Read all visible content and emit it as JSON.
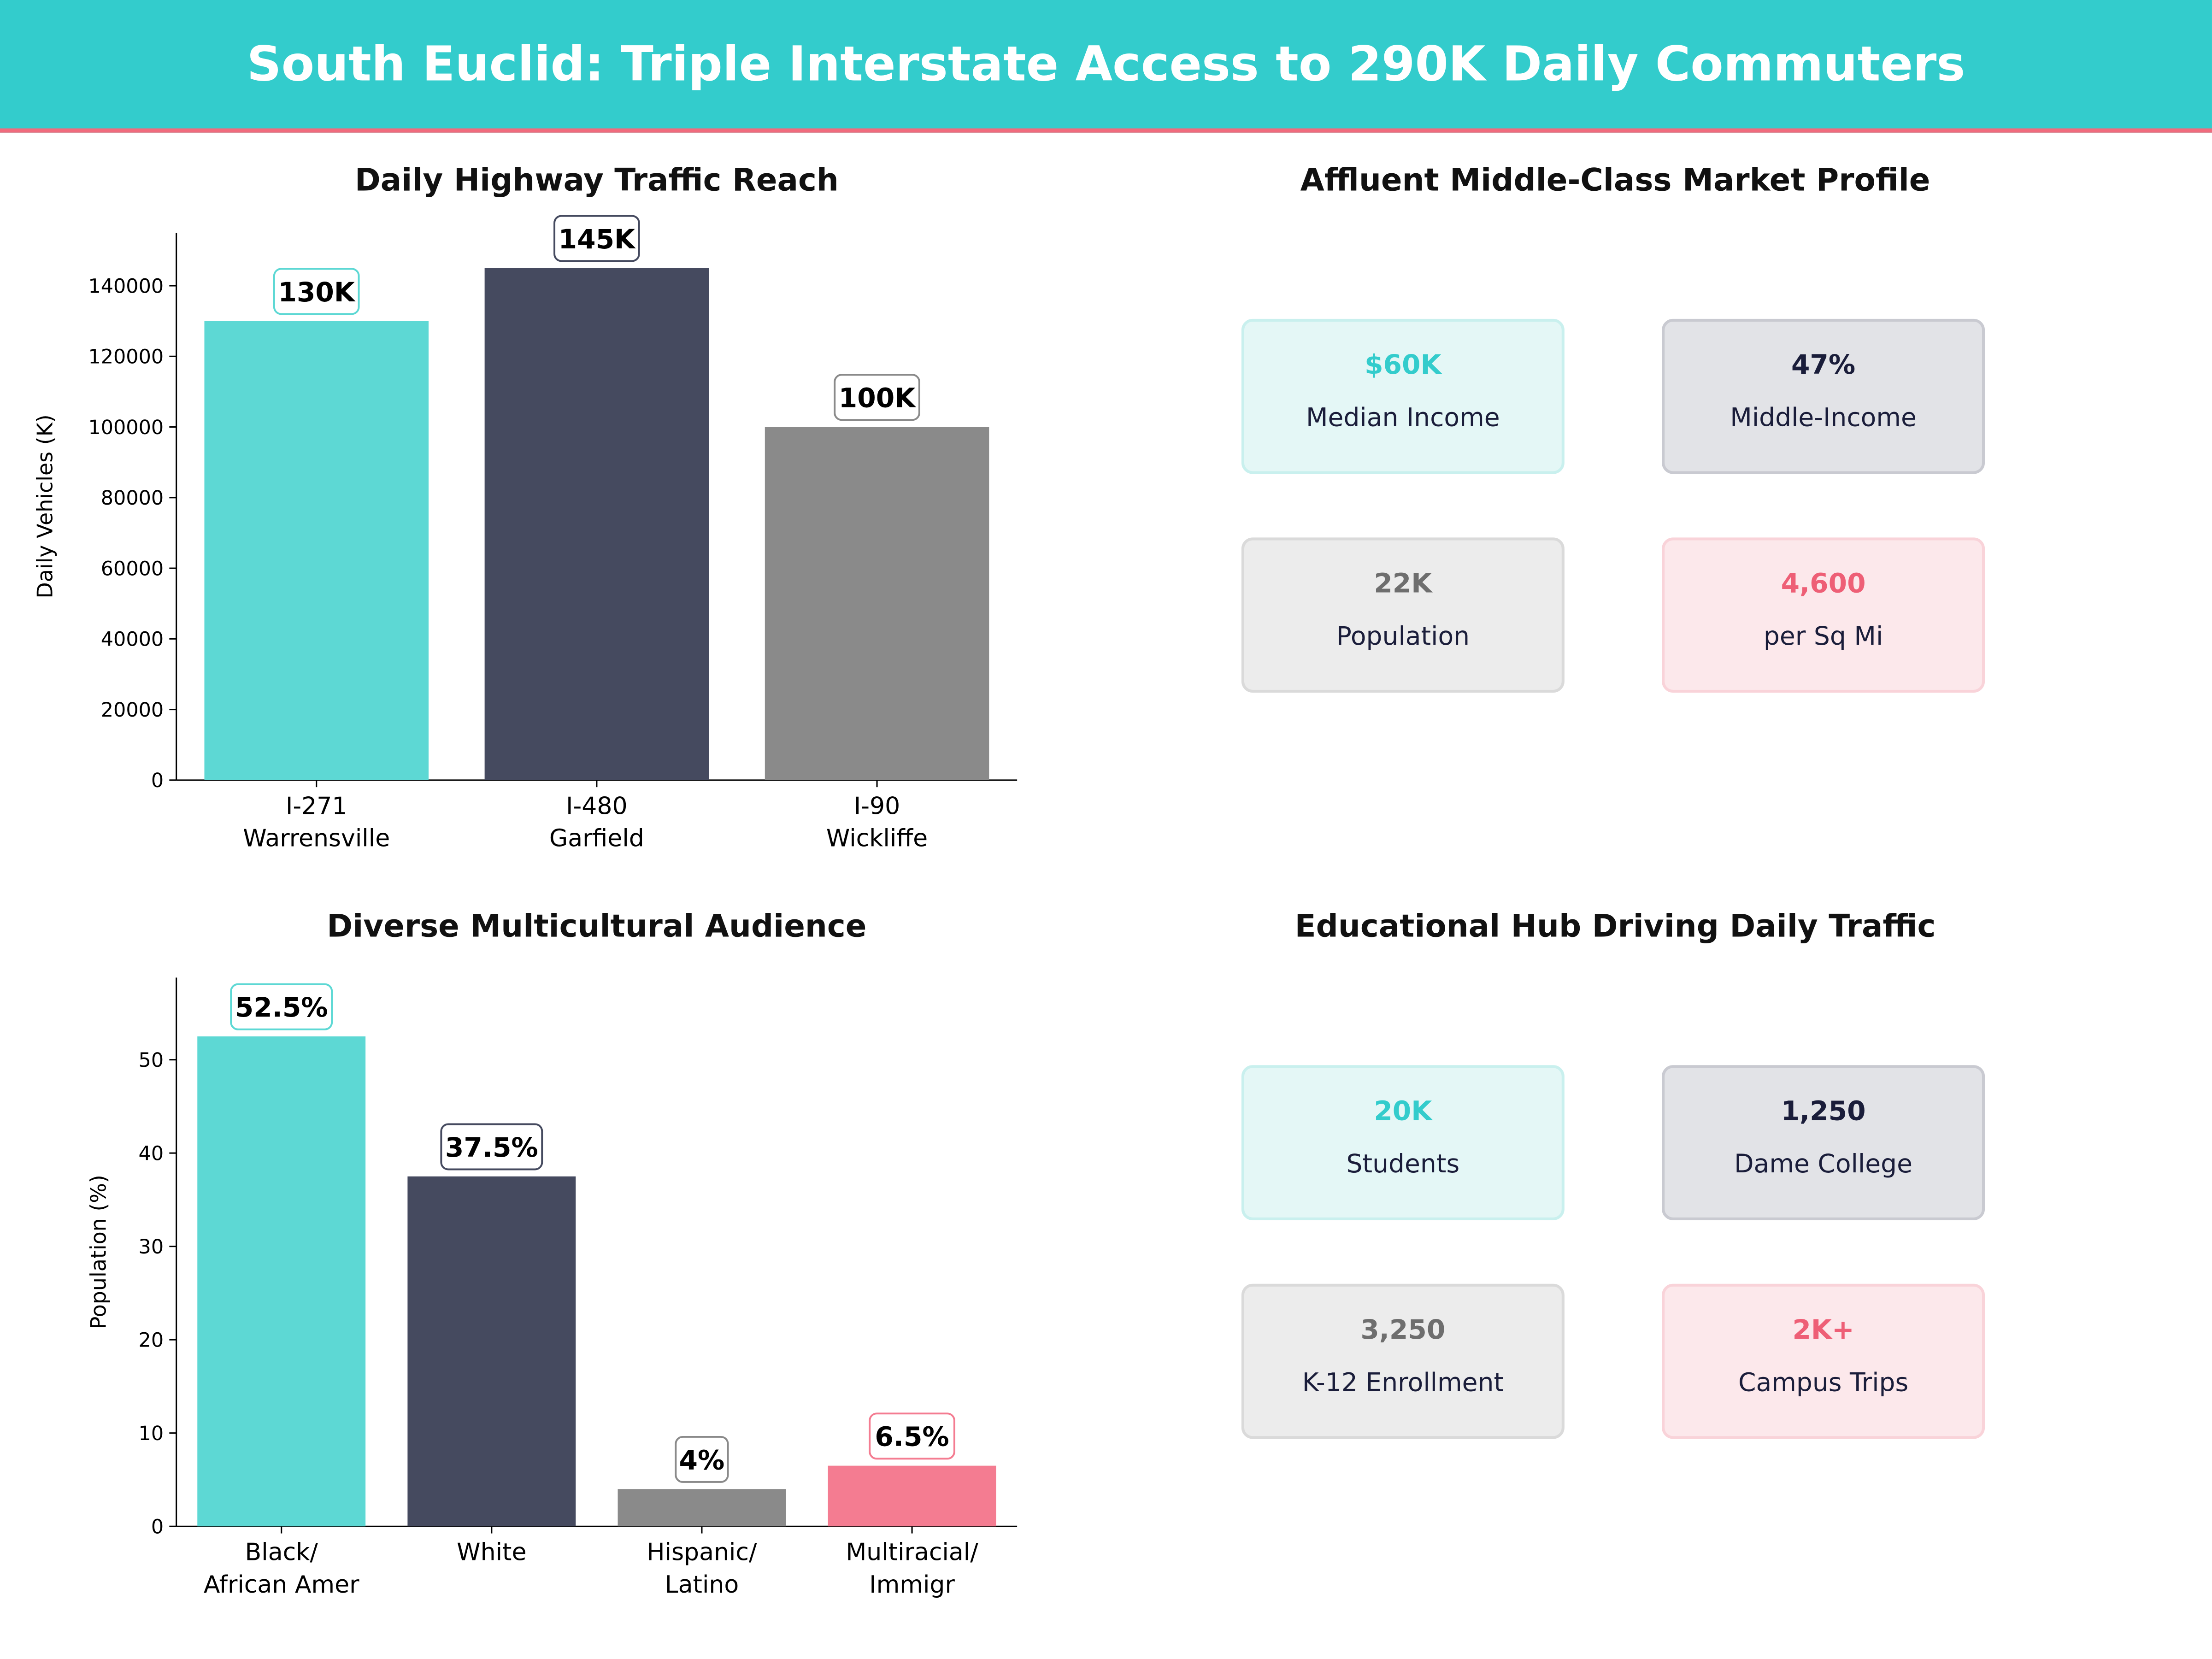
{
  "header": {
    "title": "South Euclid: Triple Interstate Access to 290K Daily Commuters"
  },
  "colors": {
    "teal": "#5DD8D4",
    "navy": "#454A5F",
    "gray": "#8A8A8A",
    "pink": "#F47C91",
    "header": "#33CCCC"
  },
  "chart_data": [
    {
      "type": "bar",
      "title": "Daily Highway Traffic Reach",
      "ylabel": "Daily Vehicles (K)",
      "xlabel": "",
      "categories": [
        "I-271\nWarrensville",
        "I-480\nGarfield",
        "I-90\nWickliffe"
      ],
      "values": [
        130000,
        145000,
        100000
      ],
      "data_labels": [
        "130K",
        "145K",
        "100K"
      ],
      "bar_colors": [
        "#5DD8D4",
        "#454A5F",
        "#8A8A8A"
      ],
      "ylim": [
        0,
        155000
      ],
      "yticks": [
        0,
        20000,
        40000,
        60000,
        80000,
        100000,
        120000,
        140000
      ],
      "grid": false
    },
    {
      "type": "bar",
      "title": "Diverse Multicultural Audience",
      "ylabel": "Population (%)",
      "xlabel": "",
      "categories": [
        "Black/\nAfrican Amer",
        "White",
        "Hispanic/\nLatino",
        "Multiracial/\nImmigr"
      ],
      "values": [
        52.5,
        37.5,
        4,
        6.5
      ],
      "data_labels": [
        "52.5%",
        "37.5%",
        "4%",
        "6.5%"
      ],
      "bar_colors": [
        "#5DD8D4",
        "#454A5F",
        "#8A8A8A",
        "#F47C91"
      ],
      "ylim": [
        0,
        58.8
      ],
      "yticks": [
        0,
        10,
        20,
        30,
        40,
        50
      ],
      "grid": false
    }
  ],
  "market": {
    "title": "Affluent Middle-Class Market Profile",
    "cards": [
      {
        "value": "$60K",
        "label": "Median Income"
      },
      {
        "value": "47%",
        "label": "Middle-Income"
      },
      {
        "value": "22K",
        "label": "Population"
      },
      {
        "value": "4,600",
        "label": "per Sq Mi"
      }
    ]
  },
  "education": {
    "title": "Educational Hub Driving Daily Traffic",
    "cards": [
      {
        "value": "20K",
        "label": "Students"
      },
      {
        "value": "1,250",
        "label": "Dame College"
      },
      {
        "value": "3,250",
        "label": "K-12 Enrollment"
      },
      {
        "value": "2K+",
        "label": "Campus Trips"
      }
    ]
  }
}
